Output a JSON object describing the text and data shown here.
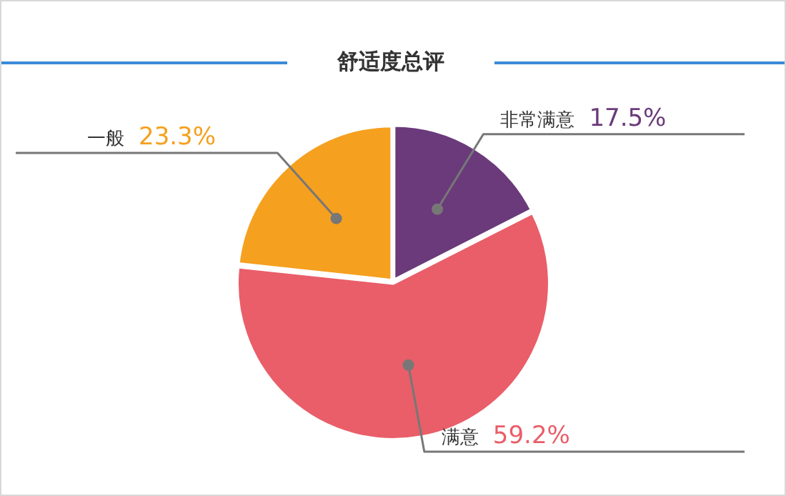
{
  "chart_data": {
    "type": "pie",
    "title": "舒适度总评",
    "categories": [
      "非常满意",
      "满意",
      "一般"
    ],
    "values": [
      17.5,
      59.2,
      23.3
    ],
    "colors": [
      "#6a3a7b",
      "#e95e69",
      "#f5a01f"
    ],
    "value_labels": [
      "17.5%",
      "59.2%",
      "23.3%"
    ],
    "legend": false
  }
}
